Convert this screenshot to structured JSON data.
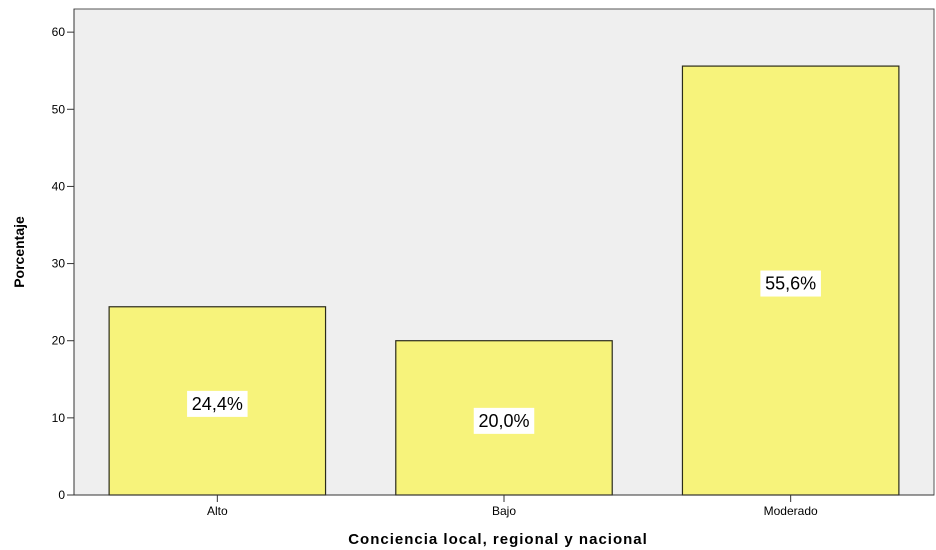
{
  "chart_data": {
    "type": "bar",
    "categories": [
      "Alto",
      "Bajo",
      "Moderado"
    ],
    "values": [
      24.4,
      20.0,
      55.6
    ],
    "data_labels": [
      "24,4%",
      "20,0%",
      "55,6%"
    ],
    "xlabel": "Conciencia local, regional y nacional",
    "ylabel": "Porcentaje",
    "ylim": [
      0,
      63
    ],
    "yticks": [
      0,
      10,
      20,
      30,
      40,
      50,
      60
    ],
    "grid": false,
    "colors": {
      "bar_fill": "#f7f37b",
      "bar_stroke": "#2b2b1a",
      "plot_background": "#efefef",
      "label_background": "#ffffff"
    }
  }
}
